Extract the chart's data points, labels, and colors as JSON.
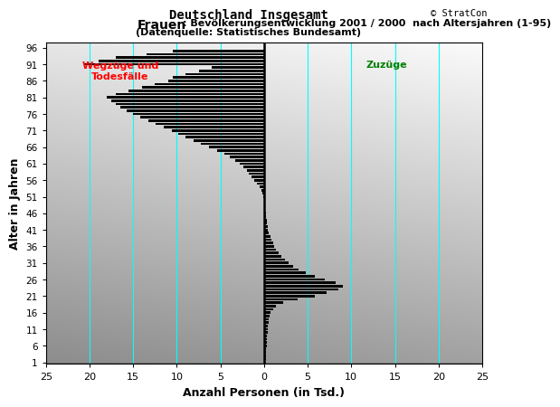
{
  "title_main": "Deutschland Insgesamt",
  "title_sub1_pre": "Frauen",
  "title_sub1_post": ": Bevölkerungsentwicklung 2001 / 2000  nach Altersjahren (1-95)",
  "title_sub2": "(Datenquelle: Statistisches Bundesamt)",
  "copyright": "© StratCon",
  "xlabel": "Anzahl Personen (in Tsd.)",
  "ylabel": "Alter in Jahren",
  "label_wegzuege": "Wegzüge und\nTodesfälle",
  "label_zuzuege": "Zuzüge",
  "xlim": [
    -25,
    25
  ],
  "xticks": [
    -25,
    -20,
    -15,
    -10,
    -5,
    0,
    5,
    10,
    15,
    20,
    25
  ],
  "xticklabels": [
    "25",
    "20",
    "15",
    "10",
    "5",
    "0",
    "5",
    "10",
    "15",
    "20",
    "25"
  ],
  "ytick_positions": [
    1,
    6,
    11,
    16,
    21,
    26,
    31,
    36,
    41,
    46,
    51,
    56,
    61,
    66,
    71,
    76,
    81,
    86,
    91,
    96
  ],
  "ytick_labels": [
    "1",
    "6",
    "11",
    "16",
    "21",
    "26",
    "31",
    "36",
    "41",
    "46",
    "51",
    "56",
    "61",
    "66",
    "71",
    "76",
    "81",
    "86",
    "91",
    "96"
  ],
  "cyan_lines_x": [
    -20,
    -15,
    -10,
    -5,
    5,
    10,
    15,
    20
  ],
  "bar_color": "#000000",
  "ages": [
    1,
    2,
    3,
    4,
    5,
    6,
    7,
    8,
    9,
    10,
    11,
    12,
    13,
    14,
    15,
    16,
    17,
    18,
    19,
    20,
    21,
    22,
    23,
    24,
    25,
    26,
    27,
    28,
    29,
    30,
    31,
    32,
    33,
    34,
    35,
    36,
    37,
    38,
    39,
    40,
    41,
    42,
    43,
    44,
    45,
    46,
    47,
    48,
    49,
    50,
    51,
    52,
    53,
    54,
    55,
    56,
    57,
    58,
    59,
    60,
    61,
    62,
    63,
    64,
    65,
    66,
    67,
    68,
    69,
    70,
    71,
    72,
    73,
    74,
    75,
    76,
    77,
    78,
    79,
    80,
    81,
    82,
    83,
    84,
    85,
    86,
    87,
    88,
    89,
    90,
    91,
    92,
    93,
    94,
    95
  ],
  "values": [
    0.15,
    0.18,
    0.2,
    0.22,
    0.25,
    0.28,
    0.3,
    0.32,
    0.35,
    0.4,
    0.42,
    0.45,
    0.48,
    0.55,
    0.65,
    0.75,
    1.0,
    1.4,
    2.2,
    3.8,
    5.8,
    7.2,
    8.5,
    9.0,
    8.2,
    7.0,
    5.8,
    4.8,
    4.0,
    3.3,
    2.8,
    2.4,
    2.0,
    1.7,
    1.4,
    1.2,
    1.0,
    0.85,
    0.7,
    0.55,
    0.45,
    0.38,
    0.32,
    0.28,
    0.22,
    0.18,
    0.15,
    0.12,
    0.1,
    0.08,
    -0.1,
    -0.2,
    -0.35,
    -0.55,
    -0.8,
    -1.1,
    -1.4,
    -1.7,
    -2.0,
    -2.4,
    -2.8,
    -3.3,
    -3.9,
    -4.6,
    -5.4,
    -6.3,
    -7.2,
    -8.1,
    -9.0,
    -9.8,
    -10.6,
    -11.5,
    -12.4,
    -13.3,
    -14.2,
    -15.0,
    -15.8,
    -16.5,
    -17.0,
    -17.5,
    -18.0,
    -17.0,
    -15.5,
    -14.0,
    -12.5,
    -11.0,
    -10.5,
    -9.0,
    -7.5,
    -6.0,
    -20.5,
    -19.0,
    -17.0,
    -13.5,
    -10.5
  ],
  "wegzuege_x": -16.5,
  "wegzuege_y": 89,
  "zuzuege_x": 14.0,
  "zuzuege_y": 91
}
